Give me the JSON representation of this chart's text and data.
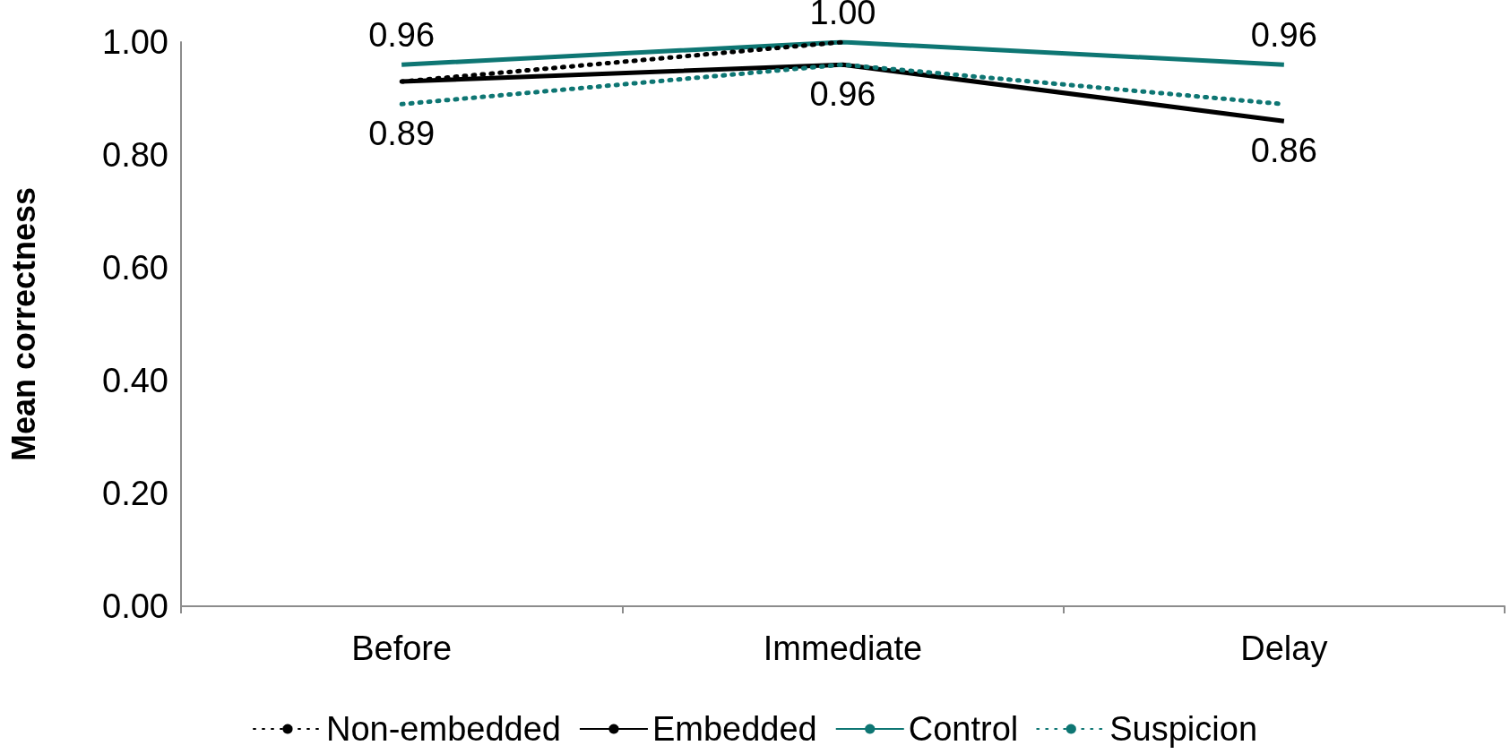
{
  "chart_data": {
    "type": "line",
    "ylabel": "Mean correctness",
    "categories": [
      "Before",
      "Immediate",
      "Delay"
    ],
    "series": [
      {
        "name": "Non-embedded",
        "color": "#000000",
        "line_style": "dotted",
        "values": [
          0.93,
          1.0,
          null
        ]
      },
      {
        "name": "Embedded",
        "color": "#000000",
        "line_style": "solid",
        "values": [
          0.93,
          0.96,
          0.86
        ],
        "value_labels": [
          null,
          "0.96",
          "0.86"
        ]
      },
      {
        "name": "Control",
        "color": "#0e7673",
        "line_style": "solid",
        "values": [
          0.96,
          1.0,
          0.96
        ],
        "value_labels": [
          "0.96",
          "1.00",
          "0.96"
        ]
      },
      {
        "name": "Suspicion",
        "color": "#0e7673",
        "line_style": "dotted",
        "values": [
          0.89,
          0.96,
          0.89
        ],
        "value_labels": [
          "0.89",
          null,
          null
        ]
      }
    ],
    "ylim": [
      0,
      1
    ],
    "yticks": [
      {
        "value": 0,
        "label": "0.00"
      },
      {
        "value": 0.2,
        "label": "0.20"
      },
      {
        "value": 0.4,
        "label": "0.40"
      },
      {
        "value": 0.6,
        "label": "0.60"
      },
      {
        "value": 0.8,
        "label": "0.80"
      },
      {
        "value": 1,
        "label": "1.00"
      }
    ],
    "grid": false,
    "legend": "bottom",
    "marker": "none"
  }
}
